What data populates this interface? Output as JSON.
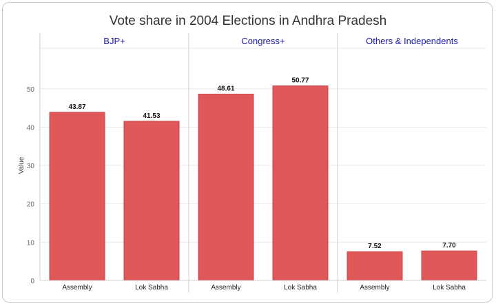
{
  "chart_data": {
    "type": "bar",
    "title": "Vote share in 2004 Elections in Andhra Pradesh",
    "ylabel": "Value",
    "ylim": [
      0,
      55
    ],
    "yticks": [
      0,
      10,
      20,
      30,
      40,
      50
    ],
    "grid": true,
    "categories": [
      "Assembly",
      "Lok Sabha"
    ],
    "panels": [
      {
        "name": "BJP+",
        "values": [
          43.87,
          41.53
        ],
        "labels": [
          "43.87",
          "41.53"
        ]
      },
      {
        "name": "Congress+",
        "values": [
          48.61,
          50.77
        ],
        "labels": [
          "48.61",
          "50.77"
        ]
      },
      {
        "name": "Others & Independents",
        "values": [
          7.52,
          7.7
        ],
        "labels": [
          "7.52",
          "7.70"
        ]
      }
    ]
  },
  "colors": {
    "bar": "#e05759",
    "bar_stroke": "#c94a4c",
    "panel_label": "#1a1aa8",
    "grid": "#e9e9e9",
    "divider": "#d0d0d0"
  }
}
